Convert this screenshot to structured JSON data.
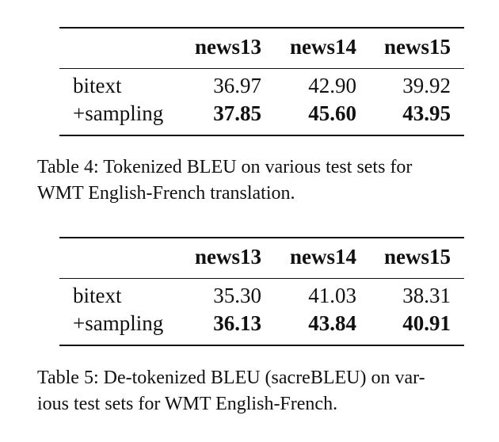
{
  "tables": [
    {
      "header": [
        "",
        "news13",
        "news14",
        "news15"
      ],
      "rows": [
        {
          "label": "bitext",
          "values": [
            "36.97",
            "42.90",
            "39.92"
          ],
          "bold": false
        },
        {
          "label": "+sampling",
          "values": [
            "37.85",
            "45.60",
            "43.95"
          ],
          "bold": true
        }
      ],
      "caption_lines": [
        "Table 4:  Tokenized BLEU on various test sets for",
        "WMT English-French translation."
      ]
    },
    {
      "header": [
        "",
        "news13",
        "news14",
        "news15"
      ],
      "rows": [
        {
          "label": "bitext",
          "values": [
            "35.30",
            "41.03",
            "38.31"
          ],
          "bold": false
        },
        {
          "label": "+sampling",
          "values": [
            "36.13",
            "43.84",
            "40.91"
          ],
          "bold": true
        }
      ],
      "caption_lines": [
        "Table 5: De-tokenized BLEU (sacreBLEU) on var-",
        "ious test sets for WMT English-French."
      ]
    }
  ]
}
